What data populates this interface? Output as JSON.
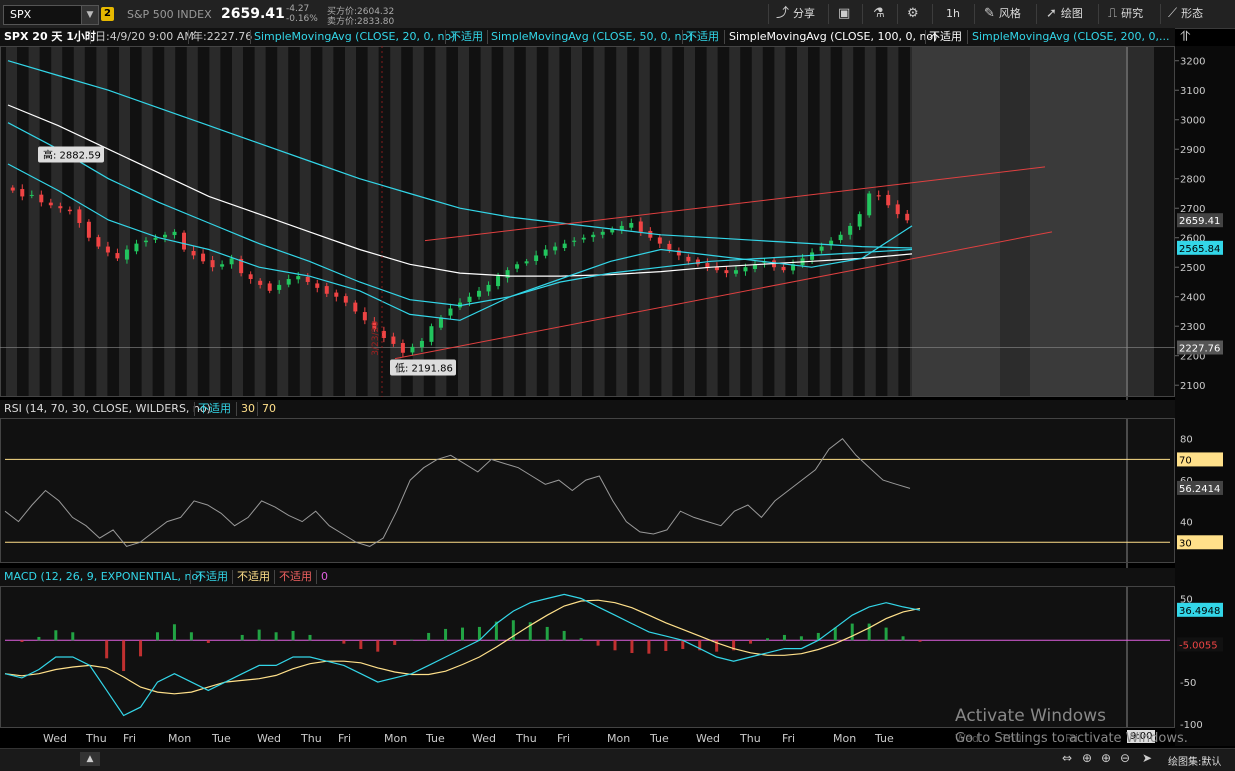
{
  "toolbar": {
    "symbol": "SPX",
    "link_badge": "2",
    "description": "S&P 500 INDEX",
    "last": "2659.41",
    "change": "-4.27",
    "change_pct": "-0.16%",
    "bid": "买方价:2604.32",
    "ask": "卖方价:2833.80",
    "buttons": {
      "share": "分享",
      "period": "1h",
      "style": "风格",
      "drawings": "绘图",
      "studies": "研究",
      "patterns": "形态"
    }
  },
  "header": {
    "title": "SPX 20 天 1小时",
    "datetime": "日:4/9/20 9:00 AM",
    "year_value": "年:2227.76",
    "studies": [
      {
        "label": "SimpleMovingAvg (CLOSE, 20, 0, no)",
        "value": "不适用",
        "color": "#33d6e8"
      },
      {
        "label": "SimpleMovingAvg (CLOSE, 50, 0, no)",
        "value": "不适用",
        "color": "#33d6e8"
      },
      {
        "label": "SimpleMovingAvg (CLOSE, 100, 0, no)",
        "value": "不适用",
        "color": "#ffffff"
      },
      {
        "label": "SimpleMovingAvg (CLOSE, 200, 0,...",
        "value": "",
        "color": "#33d6e8"
      }
    ]
  },
  "price_panel": {
    "y_ticks": [
      "3200",
      "3100",
      "3000",
      "2900",
      "2800",
      "2700",
      "2600",
      "2500",
      "2400",
      "2300",
      "2200",
      "2100"
    ],
    "high_label": "高: 2882.59",
    "low_label": "低: 2191.86",
    "last_tag": "2659.41",
    "ma_tag": "2565.84",
    "hline_tag": "2227.76",
    "vertical_label": "3/23/20"
  },
  "rsi_panel": {
    "title": "RSI (14, 70, 30, CLOSE, WILDERS, no)",
    "value": "不适用",
    "ob": "30",
    "os": "70",
    "y_ticks": [
      "80",
      "60",
      "40"
    ],
    "last_tag": "56.2414",
    "level_70": "70",
    "level_30": "30"
  },
  "macd_panel": {
    "title": "MACD (12, 26, 9, EXPONENTIAL, no)",
    "v1": "不适用",
    "v2": "不适用",
    "v3": "不适用",
    "v4": "0",
    "y_ticks": [
      "50",
      "0",
      "-50",
      "-100"
    ],
    "tag1": "36.4948",
    "tag2": "-5.0055"
  },
  "date_axis": [
    "Wed",
    "Thu",
    "Fri",
    "Mon",
    "Tue",
    "Wed",
    "Thu",
    "Fri",
    "Mon",
    "Tue",
    "Wed",
    "Thu",
    "Fri",
    "Mon",
    "Tue",
    "Wed",
    "Thu",
    "Fri",
    "Mon",
    "Tue",
    "Wed",
    "Thu",
    "Fri"
  ],
  "time_tag": "9:00",
  "status": {
    "drawing_set": "绘图集:默认"
  },
  "watermark": {
    "line1": "Activate Windows",
    "line2": "Go to Settings to activate Windows."
  },
  "colors": {
    "up": "#22c55e",
    "down": "#ef4444",
    "ma_cyan": "#33d6e8",
    "ma_white": "#ffffff",
    "trend": "#e04040",
    "level": "#ffe08a",
    "macd_line": "#33d6e8",
    "signal_line": "#ffe08a"
  }
}
